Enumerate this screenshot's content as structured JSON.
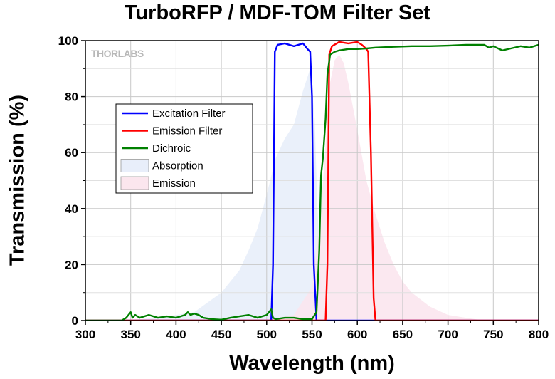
{
  "chart_data": {
    "type": "line",
    "title": "TurboRFP / MDF-TOM Filter Set",
    "xlabel": "Wavelength (nm)",
    "ylabel": "Transmission (%)",
    "xlim": [
      300,
      800
    ],
    "ylim": [
      0,
      100
    ],
    "xticks": [
      300,
      350,
      400,
      450,
      500,
      550,
      600,
      650,
      700,
      750,
      800
    ],
    "yticks": [
      0,
      20,
      40,
      60,
      80,
      100
    ],
    "grid": true,
    "legend_position": "upper-left",
    "watermark": "THORLABS",
    "series": [
      {
        "name": "Excitation Filter",
        "kind": "line",
        "color": "#0000ff",
        "x": [
          300,
          505,
          507,
          509,
          512,
          520,
          530,
          540,
          545,
          548,
          550,
          552,
          555,
          800
        ],
        "y": [
          0,
          0,
          20,
          96,
          98.5,
          99,
          98,
          99,
          97,
          96,
          80,
          20,
          0,
          0
        ]
      },
      {
        "name": "Emission Filter",
        "kind": "line",
        "color": "#ff0000",
        "x": [
          300,
          565,
          567,
          569,
          572,
          580,
          590,
          600,
          605,
          610,
          612,
          615,
          618,
          620,
          800
        ],
        "y": [
          0,
          0,
          20,
          95,
          98,
          99.5,
          99,
          99.5,
          98.5,
          97,
          96,
          60,
          8,
          0,
          0
        ]
      },
      {
        "name": "Dichroic",
        "kind": "line",
        "color": "#008000",
        "x": [
          300,
          340,
          345,
          350,
          352,
          355,
          360,
          370,
          380,
          390,
          400,
          410,
          413,
          416,
          420,
          425,
          430,
          440,
          450,
          460,
          470,
          480,
          490,
          500,
          505,
          507,
          510,
          520,
          530,
          540,
          550,
          555,
          558,
          560,
          562,
          565,
          567,
          570,
          575,
          580,
          590,
          600,
          610,
          620,
          640,
          660,
          680,
          700,
          720,
          740,
          745,
          750,
          760,
          780,
          790,
          800
        ],
        "y": [
          0,
          0,
          1,
          3,
          1,
          2,
          1,
          2,
          1,
          1.5,
          1,
          2,
          3,
          2,
          2.5,
          2,
          1,
          0.5,
          0.3,
          1,
          1.5,
          2,
          1,
          2,
          4,
          1,
          0.5,
          1,
          1,
          0.5,
          0.5,
          3,
          25,
          52,
          58,
          72,
          88,
          95,
          96,
          96.5,
          97,
          97,
          97.2,
          97.5,
          97.8,
          98,
          98,
          98.2,
          98.5,
          98.5,
          97.5,
          98,
          96.5,
          98,
          97.5,
          98.5
        ]
      },
      {
        "name": "Absorption",
        "kind": "area",
        "color": "#e8eefa",
        "x": [
          340,
          380,
          420,
          450,
          470,
          480,
          490,
          500,
          510,
          520,
          530,
          540,
          548,
          553,
          556,
          560,
          565,
          570
        ],
        "y": [
          0,
          1,
          3,
          10,
          18,
          25,
          33,
          45,
          58,
          65,
          70,
          82,
          90,
          72,
          40,
          15,
          3,
          0
        ]
      },
      {
        "name": "Emission",
        "kind": "area",
        "color": "#fbe6ee",
        "x": [
          500,
          530,
          550,
          560,
          570,
          575,
          580,
          585,
          590,
          600,
          610,
          620,
          630,
          640,
          650,
          660,
          680,
          700,
          720,
          740
        ],
        "y": [
          0,
          2,
          12,
          40,
          85,
          93,
          95,
          92,
          85,
          68,
          50,
          38,
          28,
          20,
          14,
          10,
          5,
          2,
          1,
          0
        ]
      }
    ]
  }
}
